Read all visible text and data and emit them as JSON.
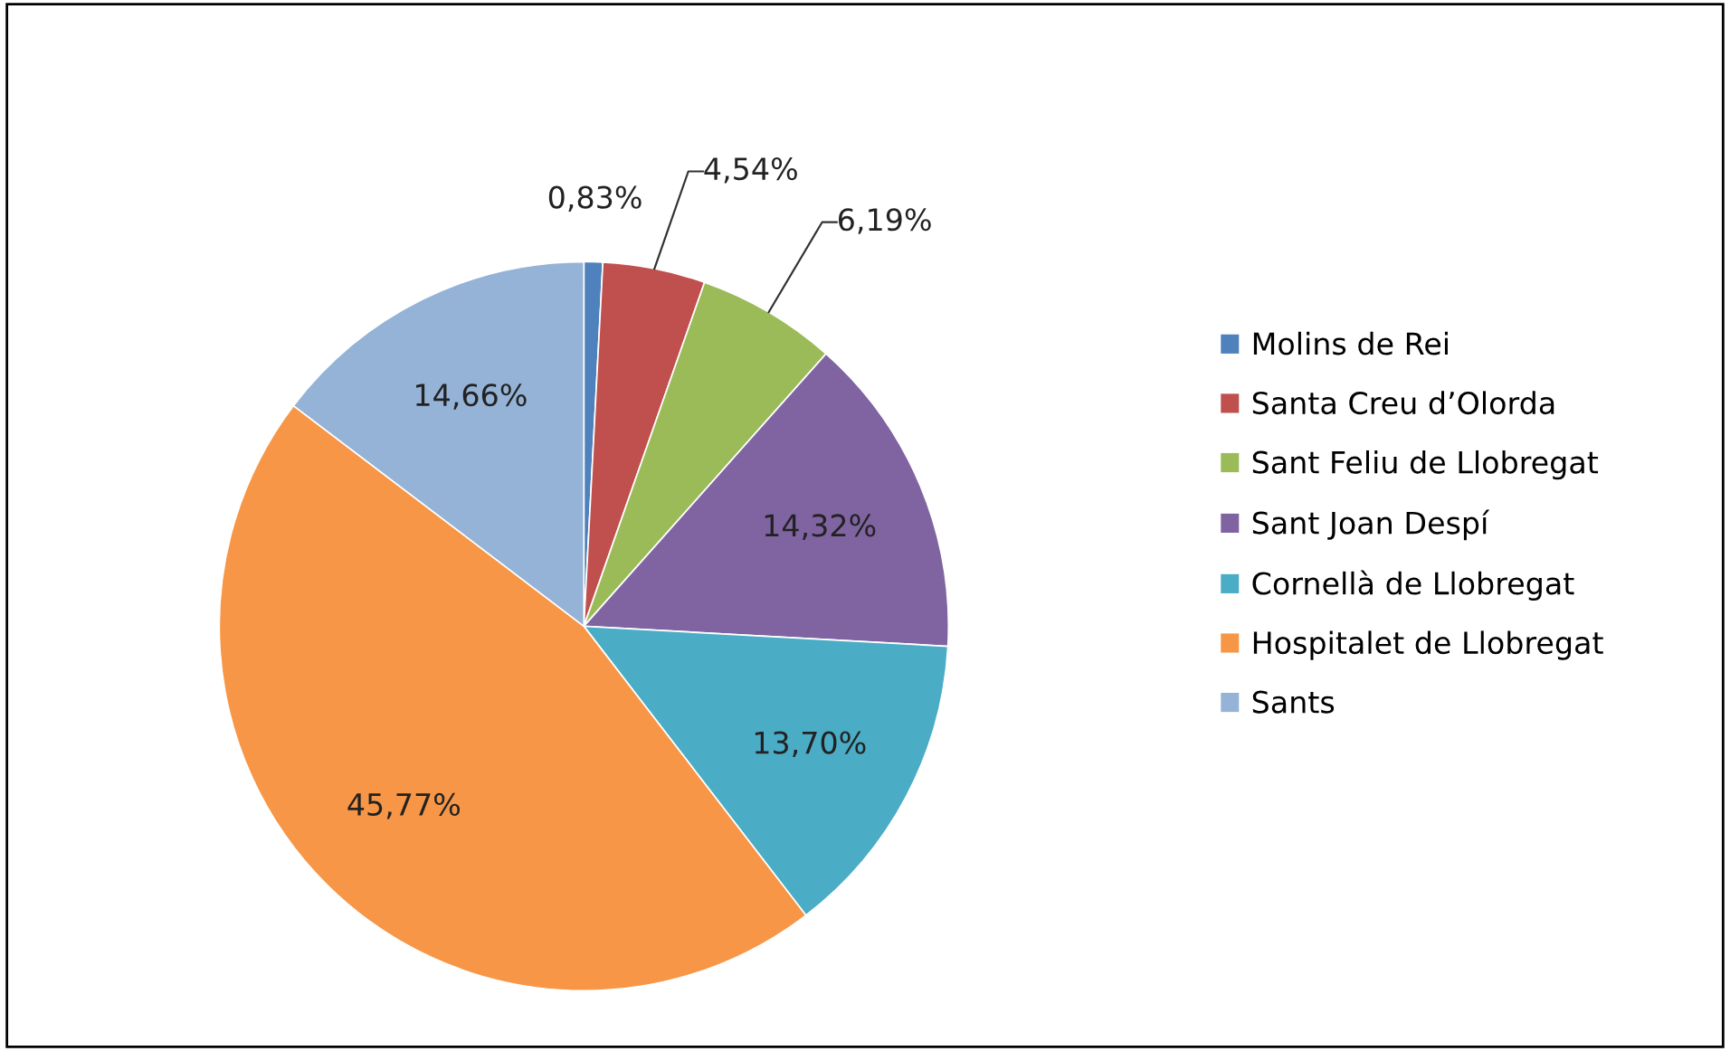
{
  "chart_data": {
    "type": "pie",
    "categories": [
      "Molins de Rei",
      "Santa Creu d’Olorda",
      "Sant Feliu de Llobregat",
      "Sant Joan Despí",
      "Cornellà de Llobregat",
      "Hospitalet de Llobregat",
      "Sants"
    ],
    "values": [
      0.83,
      4.54,
      6.19,
      14.32,
      13.7,
      45.77,
      14.66
    ],
    "value_labels": [
      "0,83%",
      "4,54%",
      "6,19%",
      "14,32%",
      "13,70%",
      "45,77%",
      "14,66%"
    ],
    "colors": [
      "#4f81bd",
      "#c0504d",
      "#9bbb59",
      "#8064a2",
      "#4bacc6",
      "#f79646",
      "#95b3d7"
    ],
    "legend": "right"
  }
}
